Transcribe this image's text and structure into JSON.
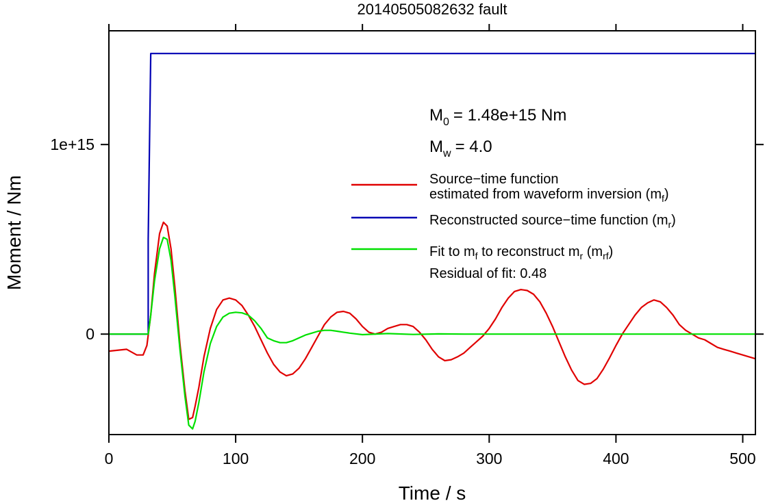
{
  "chart_data": {
    "type": "line",
    "title": "20140505082632 fault",
    "xlabel": "Time / s",
    "ylabel": "Moment / Nm",
    "xlim": [
      0,
      510
    ],
    "ylim": [
      -530000000000000.0,
      1600000000000000.0
    ],
    "xticks": [
      0,
      100,
      200,
      300,
      400,
      500
    ],
    "xtick_labels": [
      "0",
      "100",
      "200",
      "300",
      "400",
      "500"
    ],
    "yticks": [
      0,
      1000000000000000.0
    ],
    "ytick_labels": [
      "0",
      "1e+15"
    ],
    "grid": false,
    "legend_placement": "right",
    "annotations": {
      "m0": {
        "sym": "M",
        "sub": "0",
        "value": "= 1.48e+15 Nm"
      },
      "mw": {
        "sym": "M",
        "sub": "w",
        "value": "= 4.0"
      },
      "residual": "Residual of fit: 0.48"
    },
    "legend": [
      {
        "color": "#e00000",
        "lines": [
          [
            {
              "t": "Source−time function"
            }
          ],
          [
            {
              "t": "estimated from waveform inversion (m"
            },
            {
              "t": "f",
              "sub": true
            },
            {
              "t": ")"
            }
          ]
        ]
      },
      {
        "color": "#0000b4",
        "lines": [
          [
            {
              "t": "Reconstructed source−time function (m"
            },
            {
              "t": "r",
              "sub": true
            },
            {
              "t": ")"
            }
          ]
        ]
      },
      {
        "color": "#00e000",
        "lines": [
          [
            {
              "t": "Fit to m"
            },
            {
              "t": "f",
              "sub": true
            },
            {
              "t": " to reconstruct m"
            },
            {
              "t": "r",
              "sub": true
            },
            {
              "t": " (m"
            },
            {
              "t": "rf",
              "sub": true
            },
            {
              "t": ")"
            }
          ]
        ]
      }
    ],
    "series": [
      {
        "color": "#0000b4",
        "x": [
          0,
          31,
          31,
          33,
          34,
          510
        ],
        "y": [
          0,
          0,
          500000000000000.0,
          1480000000000000.0,
          1480000000000000.0,
          1480000000000000.0
        ]
      },
      {
        "color": "#e00000",
        "x": [
          0,
          14,
          22,
          27,
          30,
          33,
          36,
          40,
          43,
          46,
          49,
          52,
          56,
          60,
          63,
          66,
          68,
          71,
          75,
          80,
          85,
          90,
          95,
          100,
          105,
          110,
          115,
          120,
          125,
          130,
          135,
          140,
          145,
          150,
          155,
          160,
          165,
          170,
          175,
          180,
          185,
          190,
          195,
          200,
          205,
          210,
          215,
          220,
          225,
          230,
          235,
          240,
          245,
          250,
          255,
          260,
          265,
          270,
          275,
          280,
          285,
          290,
          295,
          300,
          305,
          310,
          315,
          320,
          325,
          330,
          335,
          340,
          345,
          350,
          355,
          360,
          365,
          370,
          375,
          380,
          385,
          390,
          395,
          400,
          405,
          410,
          415,
          420,
          425,
          430,
          435,
          440,
          445,
          450,
          455,
          460,
          465,
          470,
          475,
          480,
          485,
          490,
          495,
          500,
          505,
          510
        ],
        "y": [
          -90000000000000.0,
          -80000000000000.0,
          -110000000000000.0,
          -110000000000000.0,
          -60000000000000.0,
          100000000000000.0,
          320000000000000.0,
          530000000000000.0,
          590000000000000.0,
          570000000000000.0,
          450000000000000.0,
          250000000000000.0,
          -50000000000000.0,
          -300000000000000.0,
          -450000000000000.0,
          -440000000000000.0,
          -380000000000000.0,
          -280000000000000.0,
          -120000000000000.0,
          30000000000000.0,
          130000000000000.0,
          180000000000000.0,
          190000000000000.0,
          180000000000000.0,
          150000000000000.0,
          100000000000000.0,
          40000000000000.0,
          -30000000000000.0,
          -100000000000000.0,
          -160000000000000.0,
          -200000000000000.0,
          -220000000000000.0,
          -210000000000000.0,
          -180000000000000.0,
          -130000000000000.0,
          -70000000000000.0,
          -10000000000000.0,
          50000000000000.0,
          90000000000000.0,
          115000000000000.0,
          120000000000000.0,
          110000000000000.0,
          80000000000000.0,
          40000000000000.0,
          10000000000000.0,
          0,
          10000000000000.0,
          30000000000000.0,
          40000000000000.0,
          50000000000000.0,
          50000000000000.0,
          40000000000000.0,
          10000000000000.0,
          -30000000000000.0,
          -80000000000000.0,
          -120000000000000.0,
          -140000000000000.0,
          -135000000000000.0,
          -120000000000000.0,
          -100000000000000.0,
          -70000000000000.0,
          -40000000000000.0,
          -10000000000000.0,
          30000000000000.0,
          80000000000000.0,
          140000000000000.0,
          190000000000000.0,
          225000000000000.0,
          235000000000000.0,
          230000000000000.0,
          210000000000000.0,
          170000000000000.0,
          110000000000000.0,
          40000000000000.0,
          -40000000000000.0,
          -120000000000000.0,
          -190000000000000.0,
          -245000000000000.0,
          -265000000000000.0,
          -260000000000000.0,
          -235000000000000.0,
          -185000000000000.0,
          -125000000000000.0,
          -60000000000000.0,
          0,
          50000000000000.0,
          100000000000000.0,
          140000000000000.0,
          165000000000000.0,
          180000000000000.0,
          170000000000000.0,
          140000000000000.0,
          100000000000000.0,
          50000000000000.0,
          20000000000000.0,
          0,
          -20000000000000.0,
          -30000000000000.0,
          -50000000000000.0,
          -70000000000000.0,
          -80000000000000.0,
          -90000000000000.0,
          -100000000000000.0,
          -110000000000000.0,
          -120000000000000.0,
          -130000000000000.0
        ]
      },
      {
        "color": "#00e000",
        "x": [
          0,
          31,
          33,
          36,
          40,
          43,
          46,
          49,
          52,
          56,
          60,
          63,
          66,
          68,
          71,
          75,
          80,
          85,
          90,
          95,
          100,
          105,
          110,
          115,
          120,
          125,
          130,
          135,
          140,
          145,
          150,
          155,
          160,
          165,
          170,
          175,
          180,
          185,
          190,
          200,
          220,
          240,
          260,
          280,
          300,
          400,
          510
        ],
        "y": [
          0,
          0,
          100000000000000.0,
          280000000000000.0,
          450000000000000.0,
          510000000000000.0,
          500000000000000.0,
          390000000000000.0,
          200000000000000.0,
          -80000000000000.0,
          -330000000000000.0,
          -480000000000000.0,
          -500000000000000.0,
          -460000000000000.0,
          -360000000000000.0,
          -200000000000000.0,
          -50000000000000.0,
          40000000000000.0,
          90000000000000.0,
          110000000000000.0,
          115000000000000.0,
          112000000000000.0,
          100000000000000.0,
          70000000000000.0,
          30000000000000.0,
          -20000000000000.0,
          -35000000000000.0,
          -45000000000000.0,
          -45000000000000.0,
          -35000000000000.0,
          -20000000000000.0,
          -5000000000000.0,
          5000000000000.0,
          15000000000000.0,
          20000000000000.0,
          20000000000000.0,
          15000000000000.0,
          10000000000000.0,
          5000000000000.0,
          -3000000000000.0,
          3000000000000.0,
          -2000000000000.0,
          1000000000000.0,
          0,
          0,
          0,
          0
        ]
      }
    ]
  }
}
